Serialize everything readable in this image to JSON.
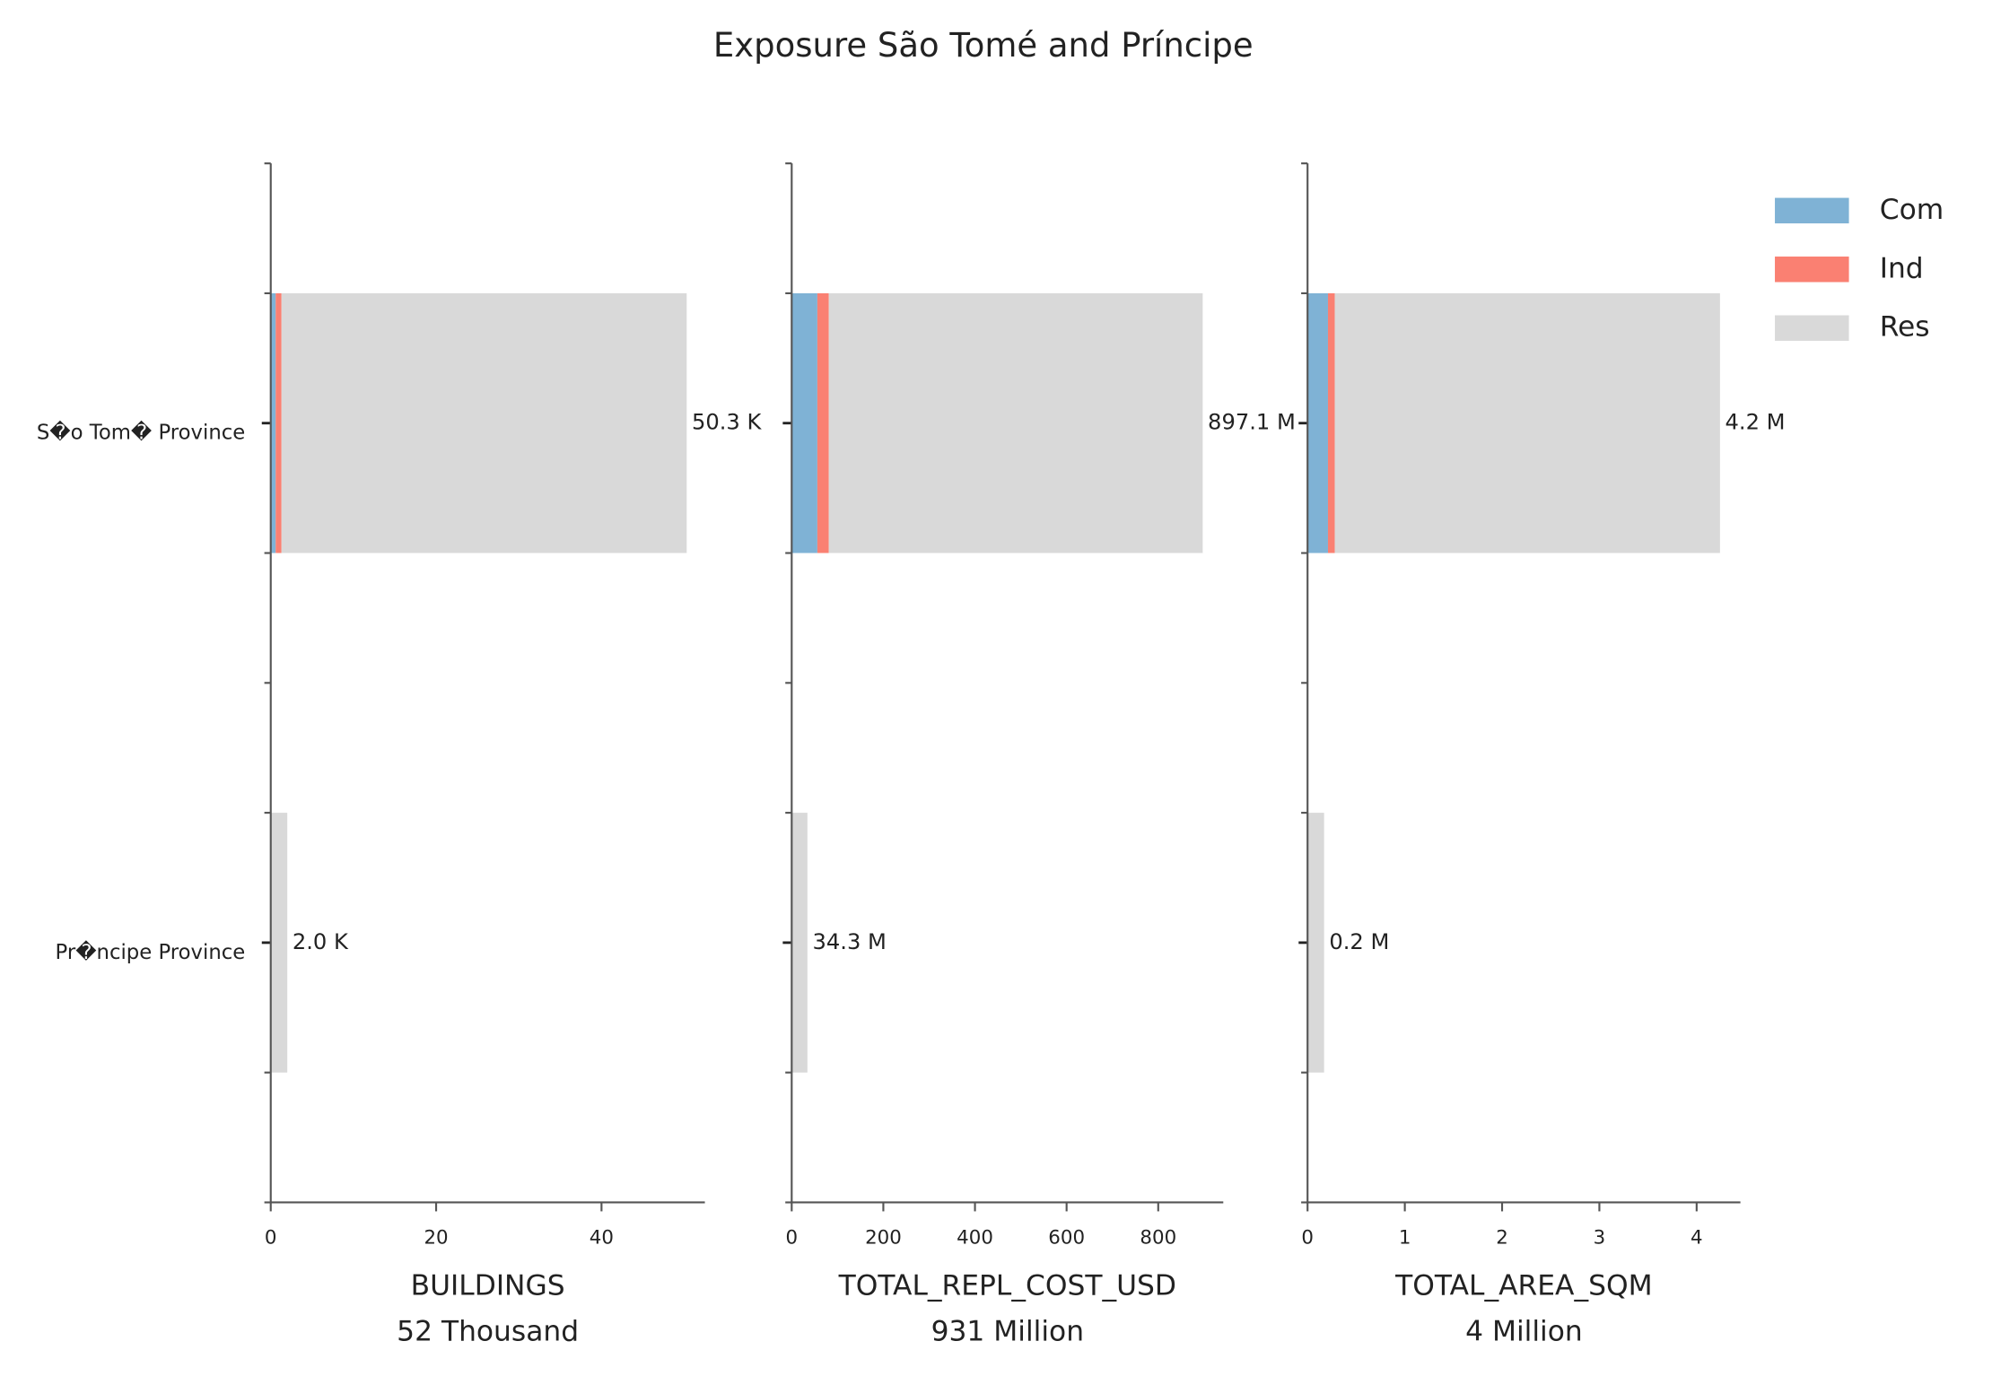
{
  "title": "Exposure São Tomé and Príncipe",
  "chart_data": [
    {
      "type": "barh",
      "categories": [
        "S�o Tom� Province",
        "Pr�ncipe Province"
      ],
      "series": [
        {
          "name": "Com",
          "color": "#7fb2d5",
          "values": [
            0.6,
            0
          ]
        },
        {
          "name": "Ind",
          "color": "#fa8072",
          "values": [
            0.7,
            0
          ]
        },
        {
          "name": "Res",
          "color": "#d9d9d9",
          "values": [
            49.0,
            2.0
          ]
        }
      ],
      "totals": [
        50.3,
        2.0
      ],
      "total_labels": [
        "50.3 K",
        "2.0 K"
      ],
      "xlim": [
        0,
        52.5
      ],
      "xticks": [
        0,
        20,
        40
      ],
      "xlabel_lines": [
        "BUILDINGS",
        "52 Thousand"
      ]
    },
    {
      "type": "barh",
      "categories": [
        "S�o Tom� Province",
        "Pr�ncipe Province"
      ],
      "series": [
        {
          "name": "Com",
          "color": "#7fb2d5",
          "values": [
            56,
            0
          ]
        },
        {
          "name": "Ind",
          "color": "#fa8072",
          "values": [
            25,
            0
          ]
        },
        {
          "name": "Res",
          "color": "#d9d9d9",
          "values": [
            816.1,
            34.3
          ]
        }
      ],
      "totals": [
        897.1,
        34.3
      ],
      "total_labels": [
        "897.1 M",
        "34.3 M"
      ],
      "xlim": [
        0,
        942
      ],
      "xticks": [
        0,
        200,
        400,
        600,
        800
      ],
      "xlabel_lines": [
        "TOTAL_REPL_COST_USD",
        "931 Million"
      ]
    },
    {
      "type": "barh",
      "categories": [
        "S�o Tom� Province",
        "Pr�ncipe Province"
      ],
      "series": [
        {
          "name": "Com",
          "color": "#7fb2d5",
          "values": [
            0.21,
            0
          ]
        },
        {
          "name": "Ind",
          "color": "#fa8072",
          "values": [
            0.07,
            0
          ]
        },
        {
          "name": "Res",
          "color": "#d9d9d9",
          "values": [
            3.96,
            0.17
          ]
        }
      ],
      "totals": [
        4.24,
        0.17
      ],
      "total_labels": [
        "4.2 M",
        "0.2 M"
      ],
      "xlim": [
        0,
        4.45
      ],
      "xticks": [
        0,
        1,
        2,
        3,
        4
      ],
      "xlabel_lines": [
        "TOTAL_AREA_SQM",
        "4 Million"
      ],
      "legend": "upper right"
    }
  ]
}
